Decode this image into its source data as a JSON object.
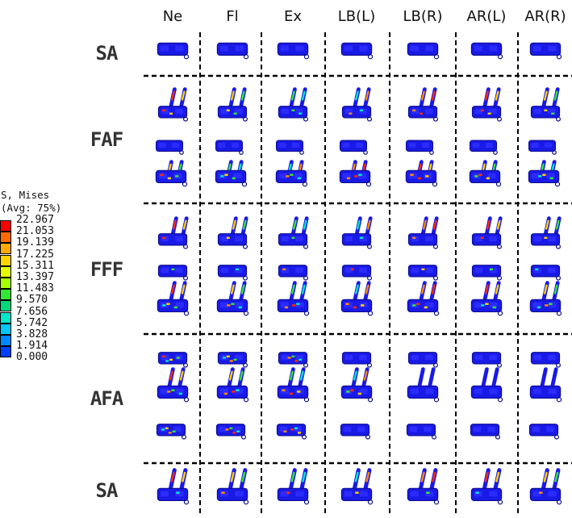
{
  "columns": [
    "Ne",
    "Fl",
    "Ex",
    "LB(L)",
    "LB(R)",
    "AR(L)",
    "AR(R)"
  ],
  "rows": [
    {
      "label": "SA",
      "segments": 1
    },
    {
      "label": "FAF",
      "segments": 2
    },
    {
      "label": "FFF",
      "segments": 3
    },
    {
      "label": "AFA",
      "segments": 3
    },
    {
      "label": "SA",
      "segments": 1
    }
  ],
  "legend": {
    "title_line1": "S, Mises",
    "title_line2": "(Avg: 75%)",
    "values": [
      "22.967",
      "21.053",
      "19.139",
      "17.225",
      "15.311",
      "13.397",
      "11.483",
      "9.570",
      "7.656",
      "5.742",
      "3.828",
      "1.914",
      "0.000"
    ],
    "colors": [
      "#ff0000",
      "#ff6a00",
      "#ffaa00",
      "#ffd400",
      "#e6ff00",
      "#a6ff00",
      "#33e633",
      "#00d97a",
      "#00e6c8",
      "#00c8ff",
      "#0088ff",
      "#0040ff",
      "#0000ff"
    ]
  },
  "colors": {
    "base_blue": "#1a1ae6",
    "dark_blue": "#0a0a8c"
  }
}
